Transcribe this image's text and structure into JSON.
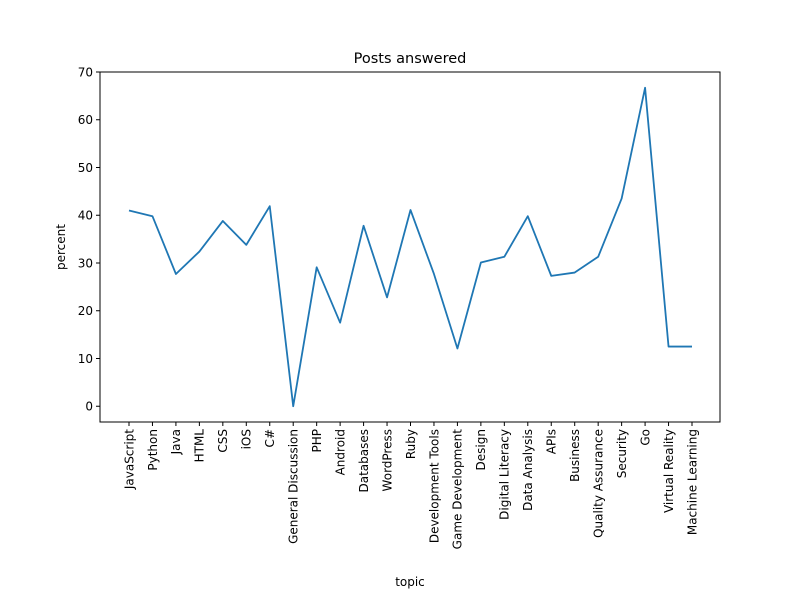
{
  "chart_data": {
    "type": "line",
    "title": "Posts answered",
    "xlabel": "topic",
    "ylabel": "percent",
    "ylim": [
      -3.3,
      70
    ],
    "yticks": [
      0,
      10,
      20,
      30,
      40,
      50,
      60,
      70
    ],
    "grid": false,
    "line_color": "#1f77b4",
    "categories": [
      "JavaScript",
      "Python",
      "Java",
      "HTML",
      "CSS",
      "iOS",
      "C#",
      "General Discussion",
      "PHP",
      "Android",
      "Databases",
      "WordPress",
      "Ruby",
      "Development Tools",
      "Game Development",
      "Design",
      "Digital Literacy",
      "Data Analysis",
      "APIs",
      "Business",
      "Quality Assurance",
      "Security",
      "Go",
      "Virtual Reality",
      "Machine Learning"
    ],
    "values": [
      41.0,
      39.8,
      27.7,
      32.4,
      38.8,
      33.8,
      41.9,
      0.0,
      29.1,
      17.5,
      37.8,
      22.8,
      41.1,
      27.7,
      12.1,
      30.1,
      31.3,
      39.8,
      27.3,
      28.0,
      31.3,
      43.5,
      66.7,
      12.5,
      12.5
    ]
  }
}
